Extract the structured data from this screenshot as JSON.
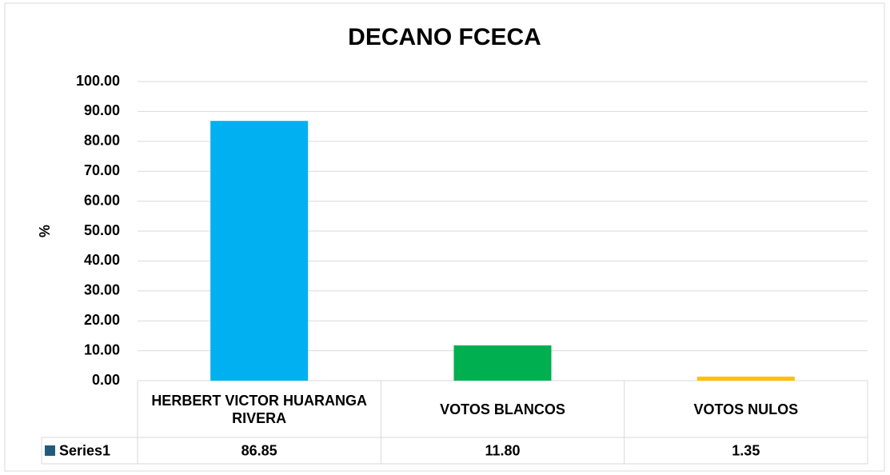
{
  "chart_data": {
    "type": "bar",
    "title": "DECANO FCECA",
    "y_label": "%",
    "categories": [
      "HERBERT VICTOR HUARANGA RIVERA",
      "VOTOS BLANCOS",
      "VOTOS NULOS"
    ],
    "series": [
      {
        "name": "Series1",
        "color": "#1f5c7a",
        "values": [
          86.85,
          11.8,
          1.35
        ],
        "value_labels": [
          "86.85",
          "11.80",
          "1.35"
        ]
      }
    ],
    "colors": [
      "#00b0f0",
      "#00b050",
      "#ffc000"
    ],
    "ylim": [
      0,
      100
    ],
    "yticks": [
      {
        "value": 0,
        "label": "0.00"
      },
      {
        "value": 10,
        "label": "10.00"
      },
      {
        "value": 20,
        "label": "20.00"
      },
      {
        "value": 30,
        "label": "30.00"
      },
      {
        "value": 40,
        "label": "40.00"
      },
      {
        "value": 50,
        "label": "50.00"
      },
      {
        "value": 60,
        "label": "60.00"
      },
      {
        "value": 70,
        "label": "70.00"
      },
      {
        "value": 80,
        "label": "80.00"
      },
      {
        "value": 90,
        "label": "90.00"
      },
      {
        "value": 100,
        "label": "100.00"
      }
    ],
    "grid": true,
    "data_table": true
  }
}
